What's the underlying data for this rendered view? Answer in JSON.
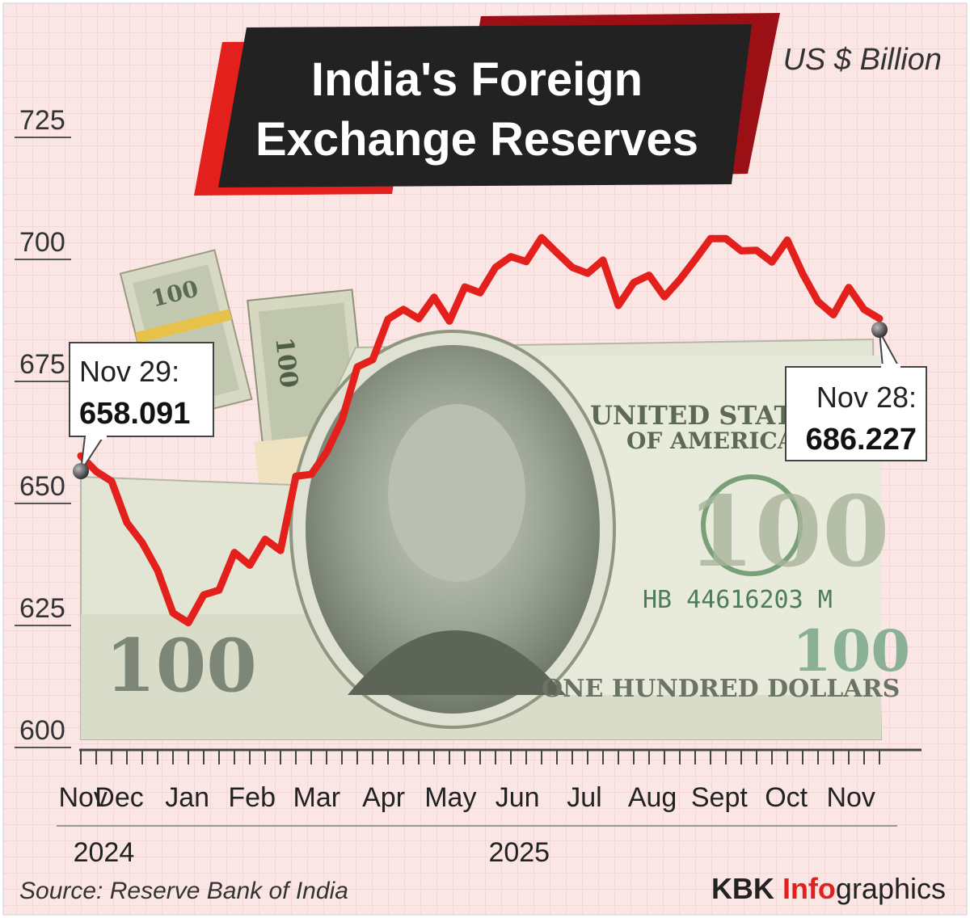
{
  "title_line1": "India's Foreign",
  "title_line2": "Exchange Reserves",
  "unit": "US $ Billion",
  "source": "Source: Reserve Bank of India",
  "credit_prefix": "KBK ",
  "credit_accent": "Info",
  "credit_suffix": "graphics",
  "colors": {
    "line": "#e3201b",
    "grid": "#e9c9c9",
    "background": "#fbe4e4",
    "title_box": "#222222",
    "accent": "#e3201b"
  },
  "callouts": {
    "start": {
      "date": "Nov 29:",
      "value": "658.091"
    },
    "end": {
      "date": "Nov 28:",
      "value": "686.227"
    }
  },
  "chart_data": {
    "type": "line",
    "title": "India's Foreign Exchange Reserves",
    "ylabel": "US $ Billion",
    "ylim": [
      600,
      725
    ],
    "yticks": [
      725,
      700,
      675,
      650,
      625,
      600
    ],
    "months": [
      "Nov",
      "Dec",
      "Jan",
      "Feb",
      "Mar",
      "Apr",
      "May",
      "Jun",
      "Jul",
      "Aug",
      "Sept",
      "Oct",
      "Nov"
    ],
    "years": [
      "2024",
      "2025"
    ],
    "grid": true,
    "series": [
      {
        "weeks": [
          "2024-11-29",
          "2024-12-06",
          "2024-12-13",
          "2024-12-20",
          "2024-12-27",
          "2025-01-03",
          "2025-01-10",
          "2025-01-17",
          "2025-01-24",
          "2025-01-31",
          "2025-02-07",
          "2025-02-14",
          "2025-02-21",
          "2025-02-28",
          "2025-03-07",
          "2025-03-14",
          "2025-03-21",
          "2025-03-28",
          "2025-04-04",
          "2025-04-11",
          "2025-04-18",
          "2025-04-25",
          "2025-05-02",
          "2025-05-09",
          "2025-05-16",
          "2025-05-23",
          "2025-05-30",
          "2025-06-06",
          "2025-06-13",
          "2025-06-20",
          "2025-06-27",
          "2025-07-04",
          "2025-07-11",
          "2025-07-18",
          "2025-07-25",
          "2025-08-01",
          "2025-08-08",
          "2025-08-15",
          "2025-08-22",
          "2025-08-29",
          "2025-09-05",
          "2025-09-12",
          "2025-09-19",
          "2025-09-26",
          "2025-10-03",
          "2025-10-10",
          "2025-10-17",
          "2025-10-24",
          "2025-10-31",
          "2025-11-07",
          "2025-11-14",
          "2025-11-21",
          "2025-11-28"
        ],
        "values": [
          658.091,
          654.9,
          652.9,
          644.4,
          640.3,
          634.6,
          625.9,
          623.9,
          629.6,
          630.6,
          638.3,
          635.7,
          641.0,
          638.7,
          653.9,
          654.3,
          658.8,
          665.4,
          676.3,
          677.8,
          686.1,
          688.1,
          686.2,
          690.6,
          685.7,
          692.7,
          691.5,
          696.7,
          698.9,
          697.9,
          702.8,
          699.7,
          696.7,
          695.5,
          698.2,
          688.9,
          693.6,
          695.1,
          690.7,
          694.2,
          698.3,
          702.6,
          702.6,
          700.1,
          700.2,
          697.8,
          702.3,
          695.4,
          689.7,
          687.0,
          692.6,
          688.1,
          686.227
        ]
      }
    ]
  }
}
